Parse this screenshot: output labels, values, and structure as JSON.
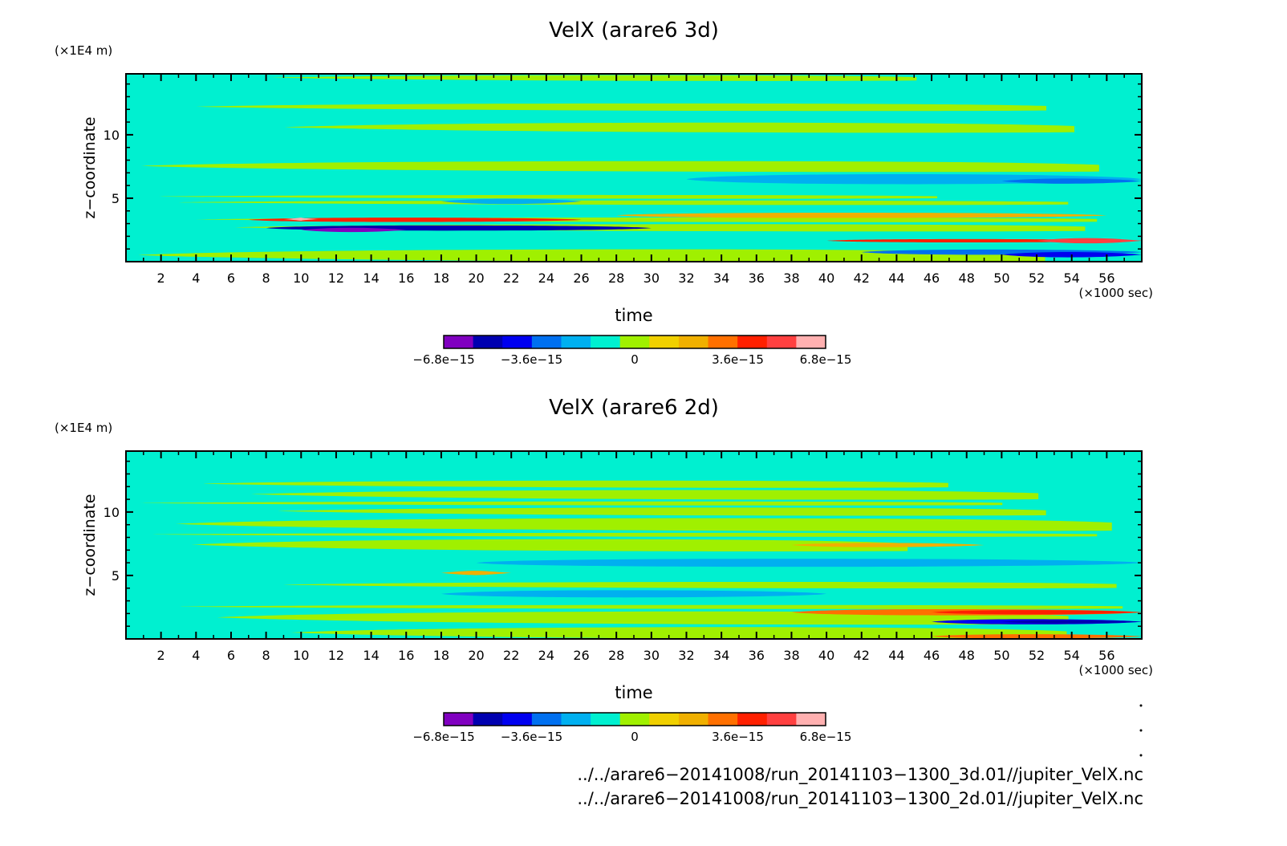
{
  "chart_data": [
    {
      "type": "heatmap",
      "title": "VelX (arare6 3d)",
      "xlabel": "time",
      "x_unit": "(×1000 sec)",
      "ylabel": "z−coordinate",
      "y_unit": "(×1E4 m)",
      "xlim": [
        0,
        58
      ],
      "ylim": [
        0,
        14.8
      ],
      "x_ticks": [
        "2",
        "4",
        "6",
        "8",
        "10",
        "12",
        "14",
        "16",
        "18",
        "20",
        "22",
        "24",
        "26",
        "28",
        "30",
        "32",
        "34",
        "36",
        "38",
        "40",
        "42",
        "44",
        "46",
        "48",
        "50",
        "52",
        "54",
        "56"
      ],
      "y_ticks": [
        "5",
        "10"
      ],
      "features": [
        {
          "t0": 7,
          "t1": 26,
          "z0": 3.1,
          "z1": 3.5,
          "level": 10
        },
        {
          "t0": 9,
          "t1": 11,
          "z0": 3.2,
          "z1": 3.5,
          "level": 12
        },
        {
          "t0": 8,
          "t1": 30,
          "z0": 2.4,
          "z1": 2.9,
          "level": 1
        },
        {
          "t0": 10,
          "t1": 16,
          "z0": 2.3,
          "z1": 2.7,
          "level": 0
        },
        {
          "t0": 40,
          "t1": 58,
          "z0": 1.5,
          "z1": 1.8,
          "level": 10
        },
        {
          "t0": 52,
          "t1": 58,
          "z0": 1.4,
          "z1": 1.9,
          "level": 11
        },
        {
          "t0": 42,
          "t1": 58,
          "z0": 0.5,
          "z1": 1.0,
          "level": 3
        },
        {
          "t0": 50,
          "t1": 58,
          "z0": 0.3,
          "z1": 0.8,
          "level": 2
        },
        {
          "t0": 32,
          "t1": 58,
          "z0": 6.0,
          "z1": 7.0,
          "level": 4
        },
        {
          "t0": 50,
          "t1": 58,
          "z0": 6.1,
          "z1": 6.6,
          "level": 3
        },
        {
          "t0": 28,
          "t1": 56,
          "z0": 3.4,
          "z1": 3.9,
          "level": 8
        },
        {
          "t0": 18,
          "t1": 26,
          "z0": 4.5,
          "z1": 5.0,
          "level": 4
        }
      ]
    },
    {
      "type": "heatmap",
      "title": "VelX (arare6 2d)",
      "xlabel": "time",
      "x_unit": "(×1000 sec)",
      "ylabel": "z−coordinate",
      "y_unit": "(×1E4 m)",
      "xlim": [
        0,
        58
      ],
      "ylim": [
        0,
        14.8
      ],
      "x_ticks": [
        "2",
        "4",
        "6",
        "8",
        "10",
        "12",
        "14",
        "16",
        "18",
        "20",
        "22",
        "24",
        "26",
        "28",
        "30",
        "32",
        "34",
        "36",
        "38",
        "40",
        "42",
        "44",
        "46",
        "48",
        "50",
        "52",
        "54",
        "56"
      ],
      "y_ticks": [
        "5",
        "10"
      ],
      "features": [
        {
          "t0": 38,
          "t1": 58,
          "z0": 1.8,
          "z1": 2.4,
          "level": 9
        },
        {
          "t0": 46,
          "t1": 58,
          "z0": 1.9,
          "z1": 2.3,
          "level": 10
        },
        {
          "t0": 46,
          "t1": 58,
          "z0": 1.1,
          "z1": 1.6,
          "level": 2
        },
        {
          "t0": 50,
          "t1": 58,
          "z0": 1.2,
          "z1": 1.5,
          "level": 1
        },
        {
          "t0": 46,
          "t1": 58,
          "z0": 0.0,
          "z1": 0.4,
          "level": 9
        },
        {
          "t0": 18,
          "t1": 40,
          "z0": 3.2,
          "z1": 3.9,
          "level": 4
        },
        {
          "t0": 20,
          "t1": 58,
          "z0": 5.6,
          "z1": 6.4,
          "level": 4
        },
        {
          "t0": 38,
          "t1": 49,
          "z0": 7.2,
          "z1": 7.6,
          "level": 8
        },
        {
          "t0": 18,
          "t1": 22,
          "z0": 5.0,
          "z1": 5.4,
          "level": 8
        }
      ]
    }
  ],
  "colorbar": {
    "colors": [
      "#8000c0",
      "#0000b0",
      "#0000f0",
      "#0070f0",
      "#00b0f0",
      "#00f0d0",
      "#a0f000",
      "#f0d000",
      "#f0b000",
      "#ff7000",
      "#ff2000",
      "#ff4040",
      "#ffb0b0"
    ],
    "tick_labels": [
      "−6.8e−15",
      "−3.6e−15",
      "0",
      "3.6e−15",
      "6.8e−15"
    ],
    "tick_fractions": [
      0,
      0.23,
      0.5,
      0.77,
      1.0
    ]
  },
  "footer": {
    "path_3d": "../../arare6−20141008/run_20141103−1300_3d.01//jupiter_VelX.nc",
    "path_2d": "../../arare6−20141008/run_20141103−1300_2d.01//jupiter_VelX.nc"
  }
}
